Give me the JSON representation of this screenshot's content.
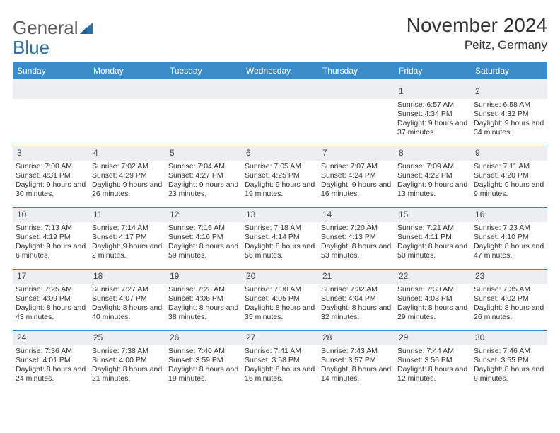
{
  "brand": {
    "word1": "General",
    "word2": "Blue"
  },
  "title": "November 2024",
  "location": "Peitz, Germany",
  "colors": {
    "headerBar": "#3b8bc8",
    "dayBg": "#edeef0",
    "ruleLine": "#3b8bc8",
    "text": "#333333",
    "logoGray": "#5a5a5a",
    "logoBlue": "#2f6fa8"
  },
  "dow": [
    "Sunday",
    "Monday",
    "Tuesday",
    "Wednesday",
    "Thursday",
    "Friday",
    "Saturday"
  ],
  "weeks": [
    [
      {
        "n": "",
        "sunrise": "",
        "sunset": "",
        "daylight": ""
      },
      {
        "n": "",
        "sunrise": "",
        "sunset": "",
        "daylight": ""
      },
      {
        "n": "",
        "sunrise": "",
        "sunset": "",
        "daylight": ""
      },
      {
        "n": "",
        "sunrise": "",
        "sunset": "",
        "daylight": ""
      },
      {
        "n": "",
        "sunrise": "",
        "sunset": "",
        "daylight": ""
      },
      {
        "n": "1",
        "sunrise": "Sunrise: 6:57 AM",
        "sunset": "Sunset: 4:34 PM",
        "daylight": "Daylight: 9 hours and 37 minutes."
      },
      {
        "n": "2",
        "sunrise": "Sunrise: 6:58 AM",
        "sunset": "Sunset: 4:32 PM",
        "daylight": "Daylight: 9 hours and 34 minutes."
      }
    ],
    [
      {
        "n": "3",
        "sunrise": "Sunrise: 7:00 AM",
        "sunset": "Sunset: 4:31 PM",
        "daylight": "Daylight: 9 hours and 30 minutes."
      },
      {
        "n": "4",
        "sunrise": "Sunrise: 7:02 AM",
        "sunset": "Sunset: 4:29 PM",
        "daylight": "Daylight: 9 hours and 26 minutes."
      },
      {
        "n": "5",
        "sunrise": "Sunrise: 7:04 AM",
        "sunset": "Sunset: 4:27 PM",
        "daylight": "Daylight: 9 hours and 23 minutes."
      },
      {
        "n": "6",
        "sunrise": "Sunrise: 7:05 AM",
        "sunset": "Sunset: 4:25 PM",
        "daylight": "Daylight: 9 hours and 19 minutes."
      },
      {
        "n": "7",
        "sunrise": "Sunrise: 7:07 AM",
        "sunset": "Sunset: 4:24 PM",
        "daylight": "Daylight: 9 hours and 16 minutes."
      },
      {
        "n": "8",
        "sunrise": "Sunrise: 7:09 AM",
        "sunset": "Sunset: 4:22 PM",
        "daylight": "Daylight: 9 hours and 13 minutes."
      },
      {
        "n": "9",
        "sunrise": "Sunrise: 7:11 AM",
        "sunset": "Sunset: 4:20 PM",
        "daylight": "Daylight: 9 hours and 9 minutes."
      }
    ],
    [
      {
        "n": "10",
        "sunrise": "Sunrise: 7:13 AM",
        "sunset": "Sunset: 4:19 PM",
        "daylight": "Daylight: 9 hours and 6 minutes."
      },
      {
        "n": "11",
        "sunrise": "Sunrise: 7:14 AM",
        "sunset": "Sunset: 4:17 PM",
        "daylight": "Daylight: 9 hours and 2 minutes."
      },
      {
        "n": "12",
        "sunrise": "Sunrise: 7:16 AM",
        "sunset": "Sunset: 4:16 PM",
        "daylight": "Daylight: 8 hours and 59 minutes."
      },
      {
        "n": "13",
        "sunrise": "Sunrise: 7:18 AM",
        "sunset": "Sunset: 4:14 PM",
        "daylight": "Daylight: 8 hours and 56 minutes."
      },
      {
        "n": "14",
        "sunrise": "Sunrise: 7:20 AM",
        "sunset": "Sunset: 4:13 PM",
        "daylight": "Daylight: 8 hours and 53 minutes."
      },
      {
        "n": "15",
        "sunrise": "Sunrise: 7:21 AM",
        "sunset": "Sunset: 4:11 PM",
        "daylight": "Daylight: 8 hours and 50 minutes."
      },
      {
        "n": "16",
        "sunrise": "Sunrise: 7:23 AM",
        "sunset": "Sunset: 4:10 PM",
        "daylight": "Daylight: 8 hours and 47 minutes."
      }
    ],
    [
      {
        "n": "17",
        "sunrise": "Sunrise: 7:25 AM",
        "sunset": "Sunset: 4:09 PM",
        "daylight": "Daylight: 8 hours and 43 minutes."
      },
      {
        "n": "18",
        "sunrise": "Sunrise: 7:27 AM",
        "sunset": "Sunset: 4:07 PM",
        "daylight": "Daylight: 8 hours and 40 minutes."
      },
      {
        "n": "19",
        "sunrise": "Sunrise: 7:28 AM",
        "sunset": "Sunset: 4:06 PM",
        "daylight": "Daylight: 8 hours and 38 minutes."
      },
      {
        "n": "20",
        "sunrise": "Sunrise: 7:30 AM",
        "sunset": "Sunset: 4:05 PM",
        "daylight": "Daylight: 8 hours and 35 minutes."
      },
      {
        "n": "21",
        "sunrise": "Sunrise: 7:32 AM",
        "sunset": "Sunset: 4:04 PM",
        "daylight": "Daylight: 8 hours and 32 minutes."
      },
      {
        "n": "22",
        "sunrise": "Sunrise: 7:33 AM",
        "sunset": "Sunset: 4:03 PM",
        "daylight": "Daylight: 8 hours and 29 minutes."
      },
      {
        "n": "23",
        "sunrise": "Sunrise: 7:35 AM",
        "sunset": "Sunset: 4:02 PM",
        "daylight": "Daylight: 8 hours and 26 minutes."
      }
    ],
    [
      {
        "n": "24",
        "sunrise": "Sunrise: 7:36 AM",
        "sunset": "Sunset: 4:01 PM",
        "daylight": "Daylight: 8 hours and 24 minutes."
      },
      {
        "n": "25",
        "sunrise": "Sunrise: 7:38 AM",
        "sunset": "Sunset: 4:00 PM",
        "daylight": "Daylight: 8 hours and 21 minutes."
      },
      {
        "n": "26",
        "sunrise": "Sunrise: 7:40 AM",
        "sunset": "Sunset: 3:59 PM",
        "daylight": "Daylight: 8 hours and 19 minutes."
      },
      {
        "n": "27",
        "sunrise": "Sunrise: 7:41 AM",
        "sunset": "Sunset: 3:58 PM",
        "daylight": "Daylight: 8 hours and 16 minutes."
      },
      {
        "n": "28",
        "sunrise": "Sunrise: 7:43 AM",
        "sunset": "Sunset: 3:57 PM",
        "daylight": "Daylight: 8 hours and 14 minutes."
      },
      {
        "n": "29",
        "sunrise": "Sunrise: 7:44 AM",
        "sunset": "Sunset: 3:56 PM",
        "daylight": "Daylight: 8 hours and 12 minutes."
      },
      {
        "n": "30",
        "sunrise": "Sunrise: 7:46 AM",
        "sunset": "Sunset: 3:55 PM",
        "daylight": "Daylight: 8 hours and 9 minutes."
      }
    ]
  ]
}
